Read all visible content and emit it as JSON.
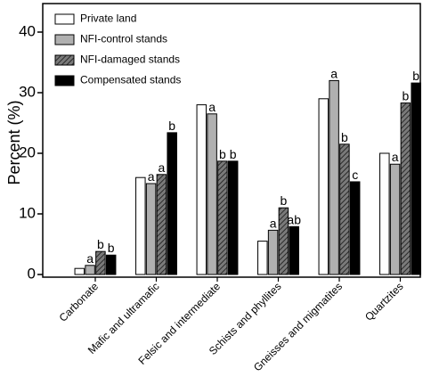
{
  "chart_data": {
    "type": "bar",
    "title": "",
    "xlabel": "",
    "ylabel": "Percent (%)",
    "ylim": [
      0,
      45
    ],
    "yticks": [
      0,
      10,
      20,
      30,
      40
    ],
    "grid": false,
    "legend_position": "top-left",
    "categories": [
      "Carbonate",
      "Mafic and ultramafic",
      "Felsic and intermediate",
      "Schists and phyllites",
      "Gneisses and migmatites",
      "Quartzites"
    ],
    "series": [
      {
        "name": "Private land",
        "style": "white",
        "values": [
          1.0,
          16.0,
          28.0,
          5.5,
          29.0,
          20.0
        ],
        "labels": [
          "",
          "",
          "",
          "",
          "",
          ""
        ]
      },
      {
        "name": "NFI-control stands",
        "style": "gray",
        "values": [
          1.5,
          15.0,
          26.5,
          7.3,
          32.0,
          18.2
        ],
        "labels": [
          "a",
          "a",
          "a",
          "a",
          "a",
          "a"
        ]
      },
      {
        "name": "NFI-damaged stands",
        "style": "hatched",
        "values": [
          3.8,
          16.5,
          18.7,
          11.0,
          21.5,
          28.3
        ],
        "labels": [
          "b",
          "a",
          "b",
          "b",
          "b",
          "b"
        ]
      },
      {
        "name": "Compensated stands",
        "style": "black",
        "values": [
          3.2,
          23.4,
          18.7,
          7.9,
          15.3,
          31.6
        ],
        "labels": [
          "b",
          "b",
          "b",
          "ab",
          "c",
          "b"
        ]
      }
    ],
    "colors": {
      "white": "#ffffff",
      "gray": "#b0b0b0",
      "hatched_bg": "#7a7a7a",
      "hatched_line": "#2a2a2a",
      "black": "#000000",
      "outline": "#000000"
    }
  }
}
